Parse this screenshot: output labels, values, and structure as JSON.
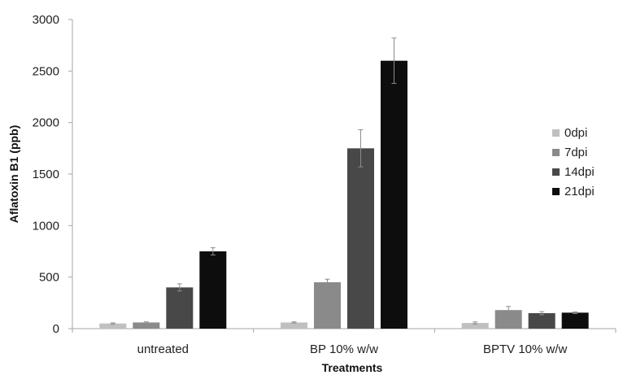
{
  "chart_data": {
    "type": "bar",
    "title": "",
    "xlabel": "Treatments",
    "ylabel": "Aflatoxin B1 (ppb)",
    "ylim": [
      0,
      3000
    ],
    "yticks": [
      "0",
      "500",
      "1000",
      "1500",
      "2000",
      "2500",
      "3000"
    ],
    "categories": [
      "untreated",
      "BP 10% w/w",
      "BPTV 10% w/w"
    ],
    "grid": false,
    "legend_position": "right",
    "series": [
      {
        "name": "0dpi",
        "color": "#c0c0c0",
        "values": [
          50,
          60,
          55
        ],
        "errors": [
          6,
          6,
          10
        ]
      },
      {
        "name": "7dpi",
        "color": "#8a8a8a",
        "values": [
          60,
          450,
          180
        ],
        "errors": [
          6,
          30,
          35
        ]
      },
      {
        "name": "14dpi",
        "color": "#484848",
        "values": [
          400,
          1750,
          150
        ],
        "errors": [
          35,
          180,
          15
        ]
      },
      {
        "name": "21dpi",
        "color": "#0d0d0d",
        "values": [
          750,
          2600,
          155
        ],
        "errors": [
          35,
          220,
          8
        ]
      }
    ]
  }
}
